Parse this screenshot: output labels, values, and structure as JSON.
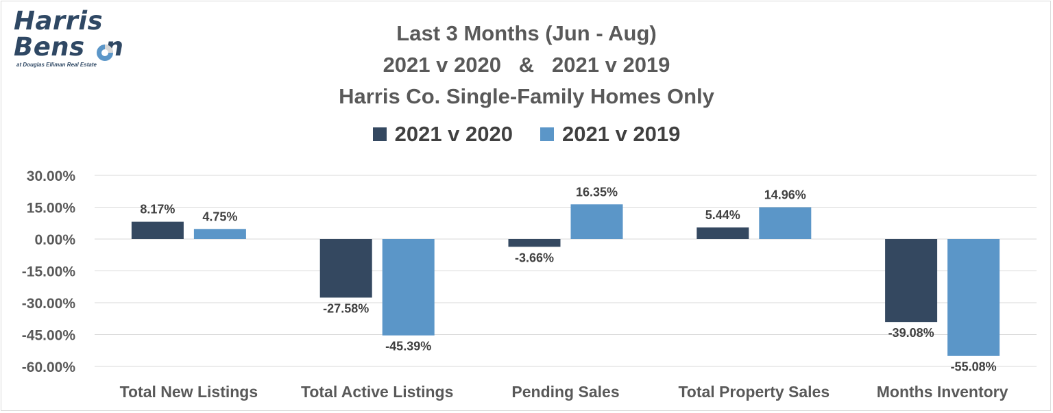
{
  "logo": {
    "line1": "Harris",
    "line2": "Bens",
    "line2_end": "n",
    "tagline": "at Douglas Elliman Real Estate"
  },
  "colors": {
    "series_2021_v_2020": "#344860",
    "series_2021_v_2019": "#5b96c8",
    "grid": "#d9d9d9"
  },
  "chart_data": {
    "type": "bar",
    "title": [
      "Last 3 Months (Jun - Aug)",
      "2021 v 2020   &   2021 v 2019",
      "Harris Co. Single-Family Homes Only"
    ],
    "legend_placement": "top",
    "categories": [
      "Total New Listings",
      "Total Active Listings",
      "Pending Sales",
      "Total Property Sales",
      "Months Inventory"
    ],
    "series": [
      {
        "name": "2021 v 2020",
        "values": [
          8.17,
          -27.58,
          -3.66,
          5.44,
          -39.08
        ],
        "labels": [
          "8.17%",
          "-27.58%",
          "-3.66%",
          "5.44%",
          "-39.08%"
        ],
        "color": "#344860"
      },
      {
        "name": "2021 v 2019",
        "values": [
          4.75,
          -45.39,
          16.35,
          14.96,
          -55.08
        ],
        "labels": [
          "4.75%",
          "-45.39%",
          "16.35%",
          "14.96%",
          "-55.08%"
        ],
        "color": "#5b96c8"
      }
    ],
    "yticks": [
      30,
      15,
      0,
      -15,
      -30,
      -45,
      -60
    ],
    "ytick_labels": [
      "30.00%",
      "15.00%",
      "0.00%",
      "-15.00%",
      "-30.00%",
      "-45.00%",
      "-60.00%"
    ],
    "ylim": [
      -60,
      30
    ],
    "grid": true
  }
}
